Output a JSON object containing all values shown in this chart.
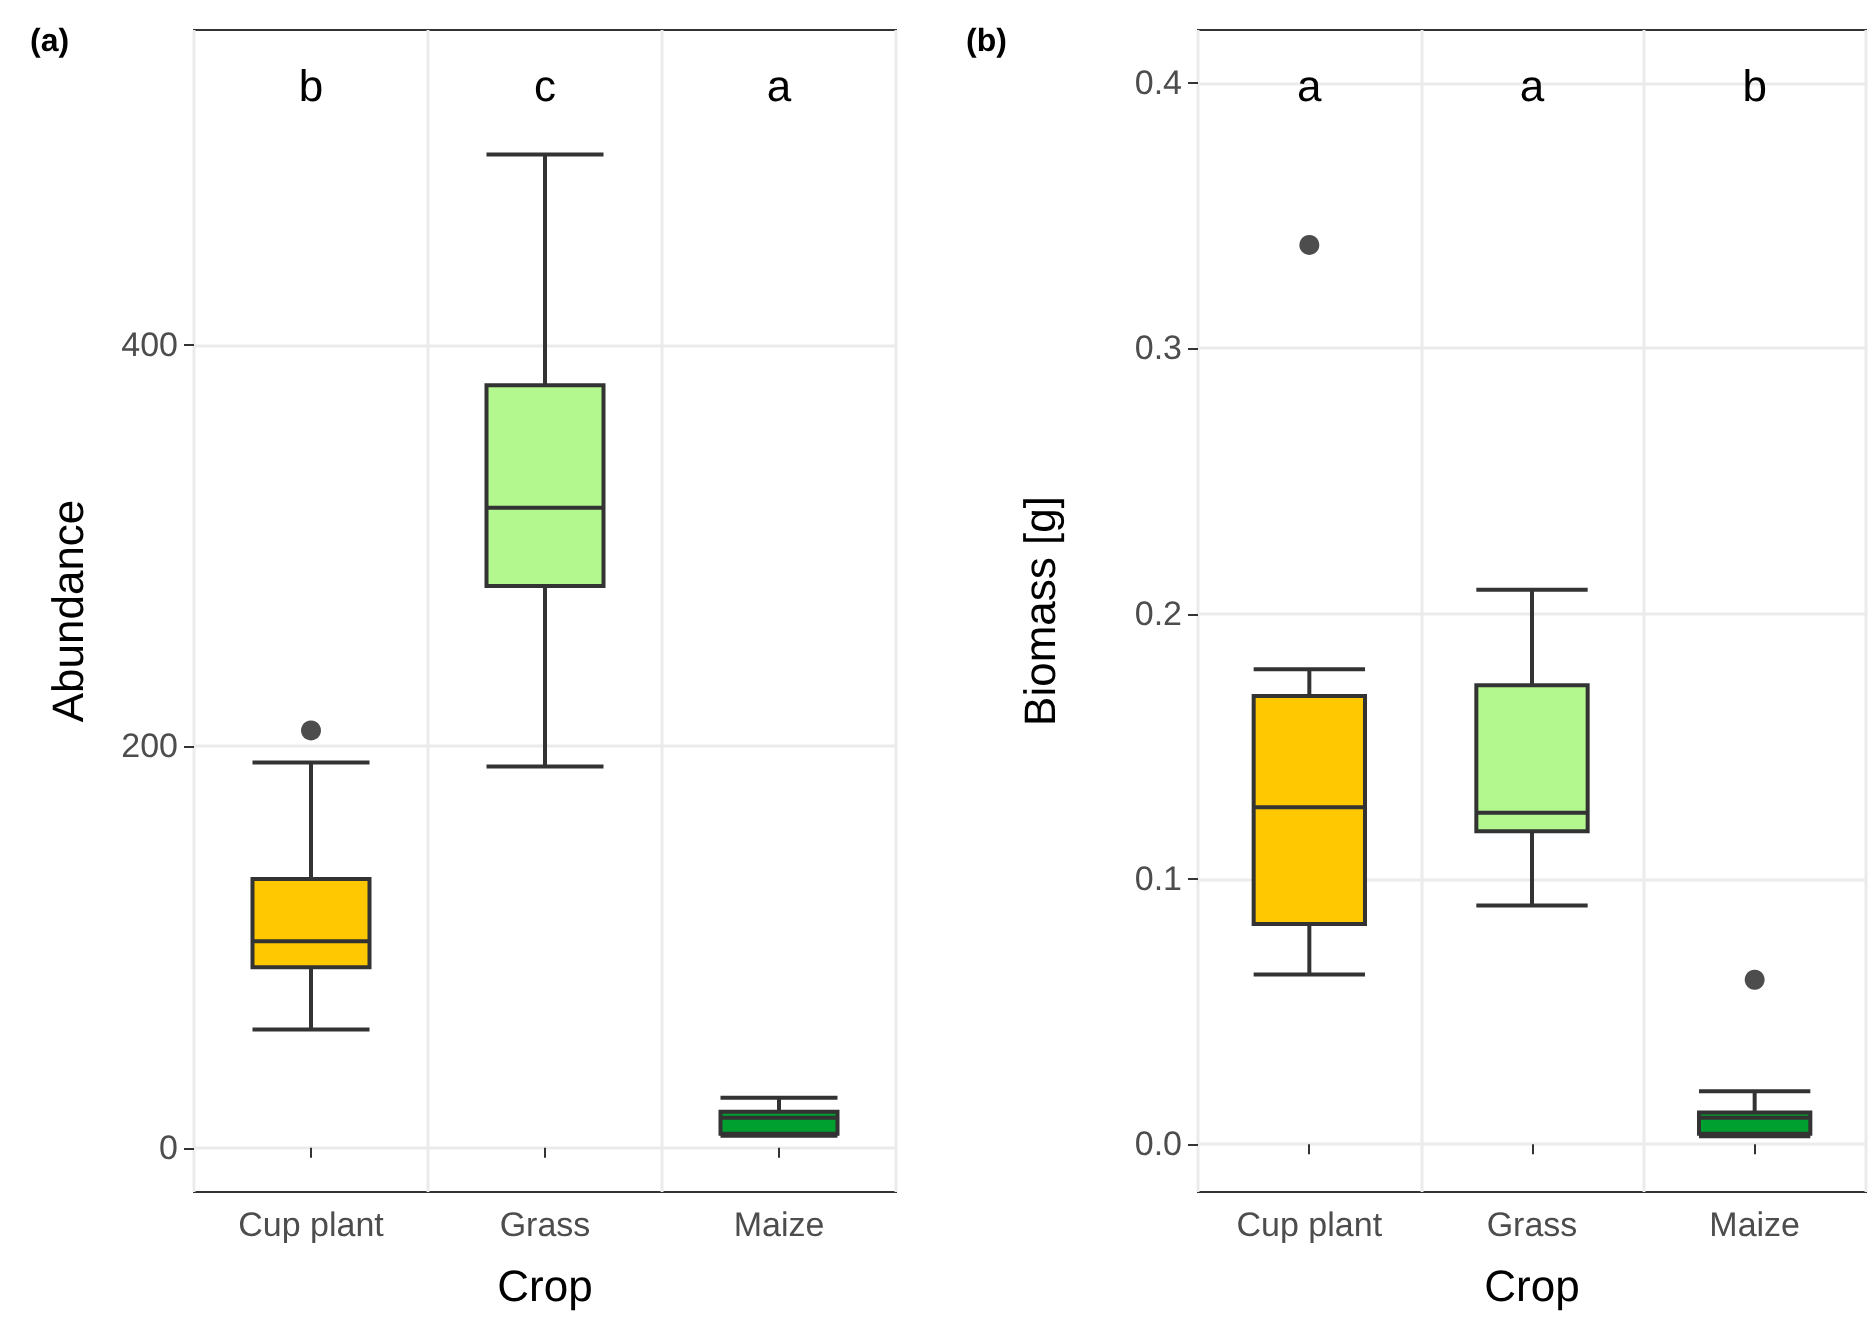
{
  "chart_data": [
    {
      "type": "box",
      "title": "(a)",
      "xlabel": "Crop",
      "ylabel": "Abundance",
      "categories": [
        "Cup plant",
        "Grass",
        "Maize"
      ],
      "colors": [
        "#ffc800",
        "#b3f78f",
        "#00a030"
      ],
      "boxes": [
        {
          "low": 59,
          "q1": 90,
          "median": 103,
          "q3": 134,
          "high": 192,
          "outliers": [
            208
          ]
        },
        {
          "low": 190,
          "q1": 280,
          "median": 319,
          "q3": 380,
          "high": 495
        },
        {
          "low": 6,
          "q1": 7,
          "median": 15,
          "q3": 18,
          "high": 25
        }
      ],
      "ylim": [
        -22,
        557
      ],
      "yticks": [
        0,
        200,
        400
      ],
      "grid": true,
      "annotations": [
        "b",
        "c",
        "a"
      ]
    },
    {
      "type": "box",
      "title": "(b)",
      "xlabel": "Crop",
      "ylabel": "Biomass [g]",
      "categories": [
        "Cup plant",
        "Grass",
        "Maize"
      ],
      "colors": [
        "#ffc800",
        "#b3f78f",
        "#00a030"
      ],
      "boxes": [
        {
          "low": 0.064,
          "q1": 0.083,
          "median": 0.127,
          "q3": 0.169,
          "high": 0.179,
          "outliers": [
            0.339
          ]
        },
        {
          "low": 0.09,
          "q1": 0.118,
          "median": 0.125,
          "q3": 0.173,
          "high": 0.209
        },
        {
          "low": 0.003,
          "q1": 0.004,
          "median": 0.01,
          "q3": 0.012,
          "high": 0.02,
          "outliers": [
            0.062
          ]
        }
      ],
      "ylim": [
        -0.018,
        0.42
      ],
      "yticks": [
        {
          "value": 0,
          "label": "0.0"
        },
        {
          "value": 0.1,
          "label": "0.1"
        },
        {
          "value": 0.2,
          "label": "0.2"
        },
        {
          "value": 0.3,
          "label": "0.3"
        },
        {
          "value": 0.4,
          "label": "0.4"
        }
      ],
      "grid": true,
      "annotations": [
        "a",
        "a",
        "b"
      ]
    }
  ]
}
